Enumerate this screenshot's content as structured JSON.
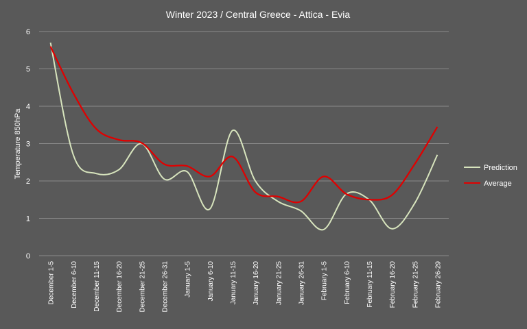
{
  "chart_data": {
    "type": "line",
    "title": "Winter 2023 /  Central Greece - Attica - Evia",
    "ylabel": "Temperature  850hPa",
    "xlabel": "",
    "ylim": [
      0,
      6
    ],
    "yticks": [
      "0",
      "1",
      "2",
      "3",
      "4",
      "5",
      "6"
    ],
    "grid": true,
    "legend_position": "right",
    "categories": [
      "December 1-5",
      "December 6-10",
      "December 11-15",
      "December 16-20",
      "December 21-25",
      "December 26-31",
      "January 1-5",
      "January 6-10",
      "January 11-15",
      "January 16-20",
      "January 21-25",
      "January 26-31",
      "February 1-5",
      "February 6-10",
      "February 11-15",
      "February 16-20",
      "February 21-25",
      "February 26-29"
    ],
    "series": [
      {
        "name": "Prediction",
        "color": "#D7E4BD",
        "values": [
          5.7,
          2.7,
          2.2,
          2.3,
          3.0,
          2.05,
          2.25,
          1.25,
          3.35,
          2.0,
          1.45,
          1.2,
          0.7,
          1.65,
          1.5,
          0.72,
          1.4,
          2.7
        ]
      },
      {
        "name": "Average",
        "color": "#E00000",
        "values": [
          5.6,
          4.35,
          3.4,
          3.1,
          3.02,
          2.45,
          2.4,
          2.12,
          2.65,
          1.7,
          1.58,
          1.45,
          2.12,
          1.65,
          1.5,
          1.62,
          2.45,
          3.45
        ]
      }
    ]
  }
}
